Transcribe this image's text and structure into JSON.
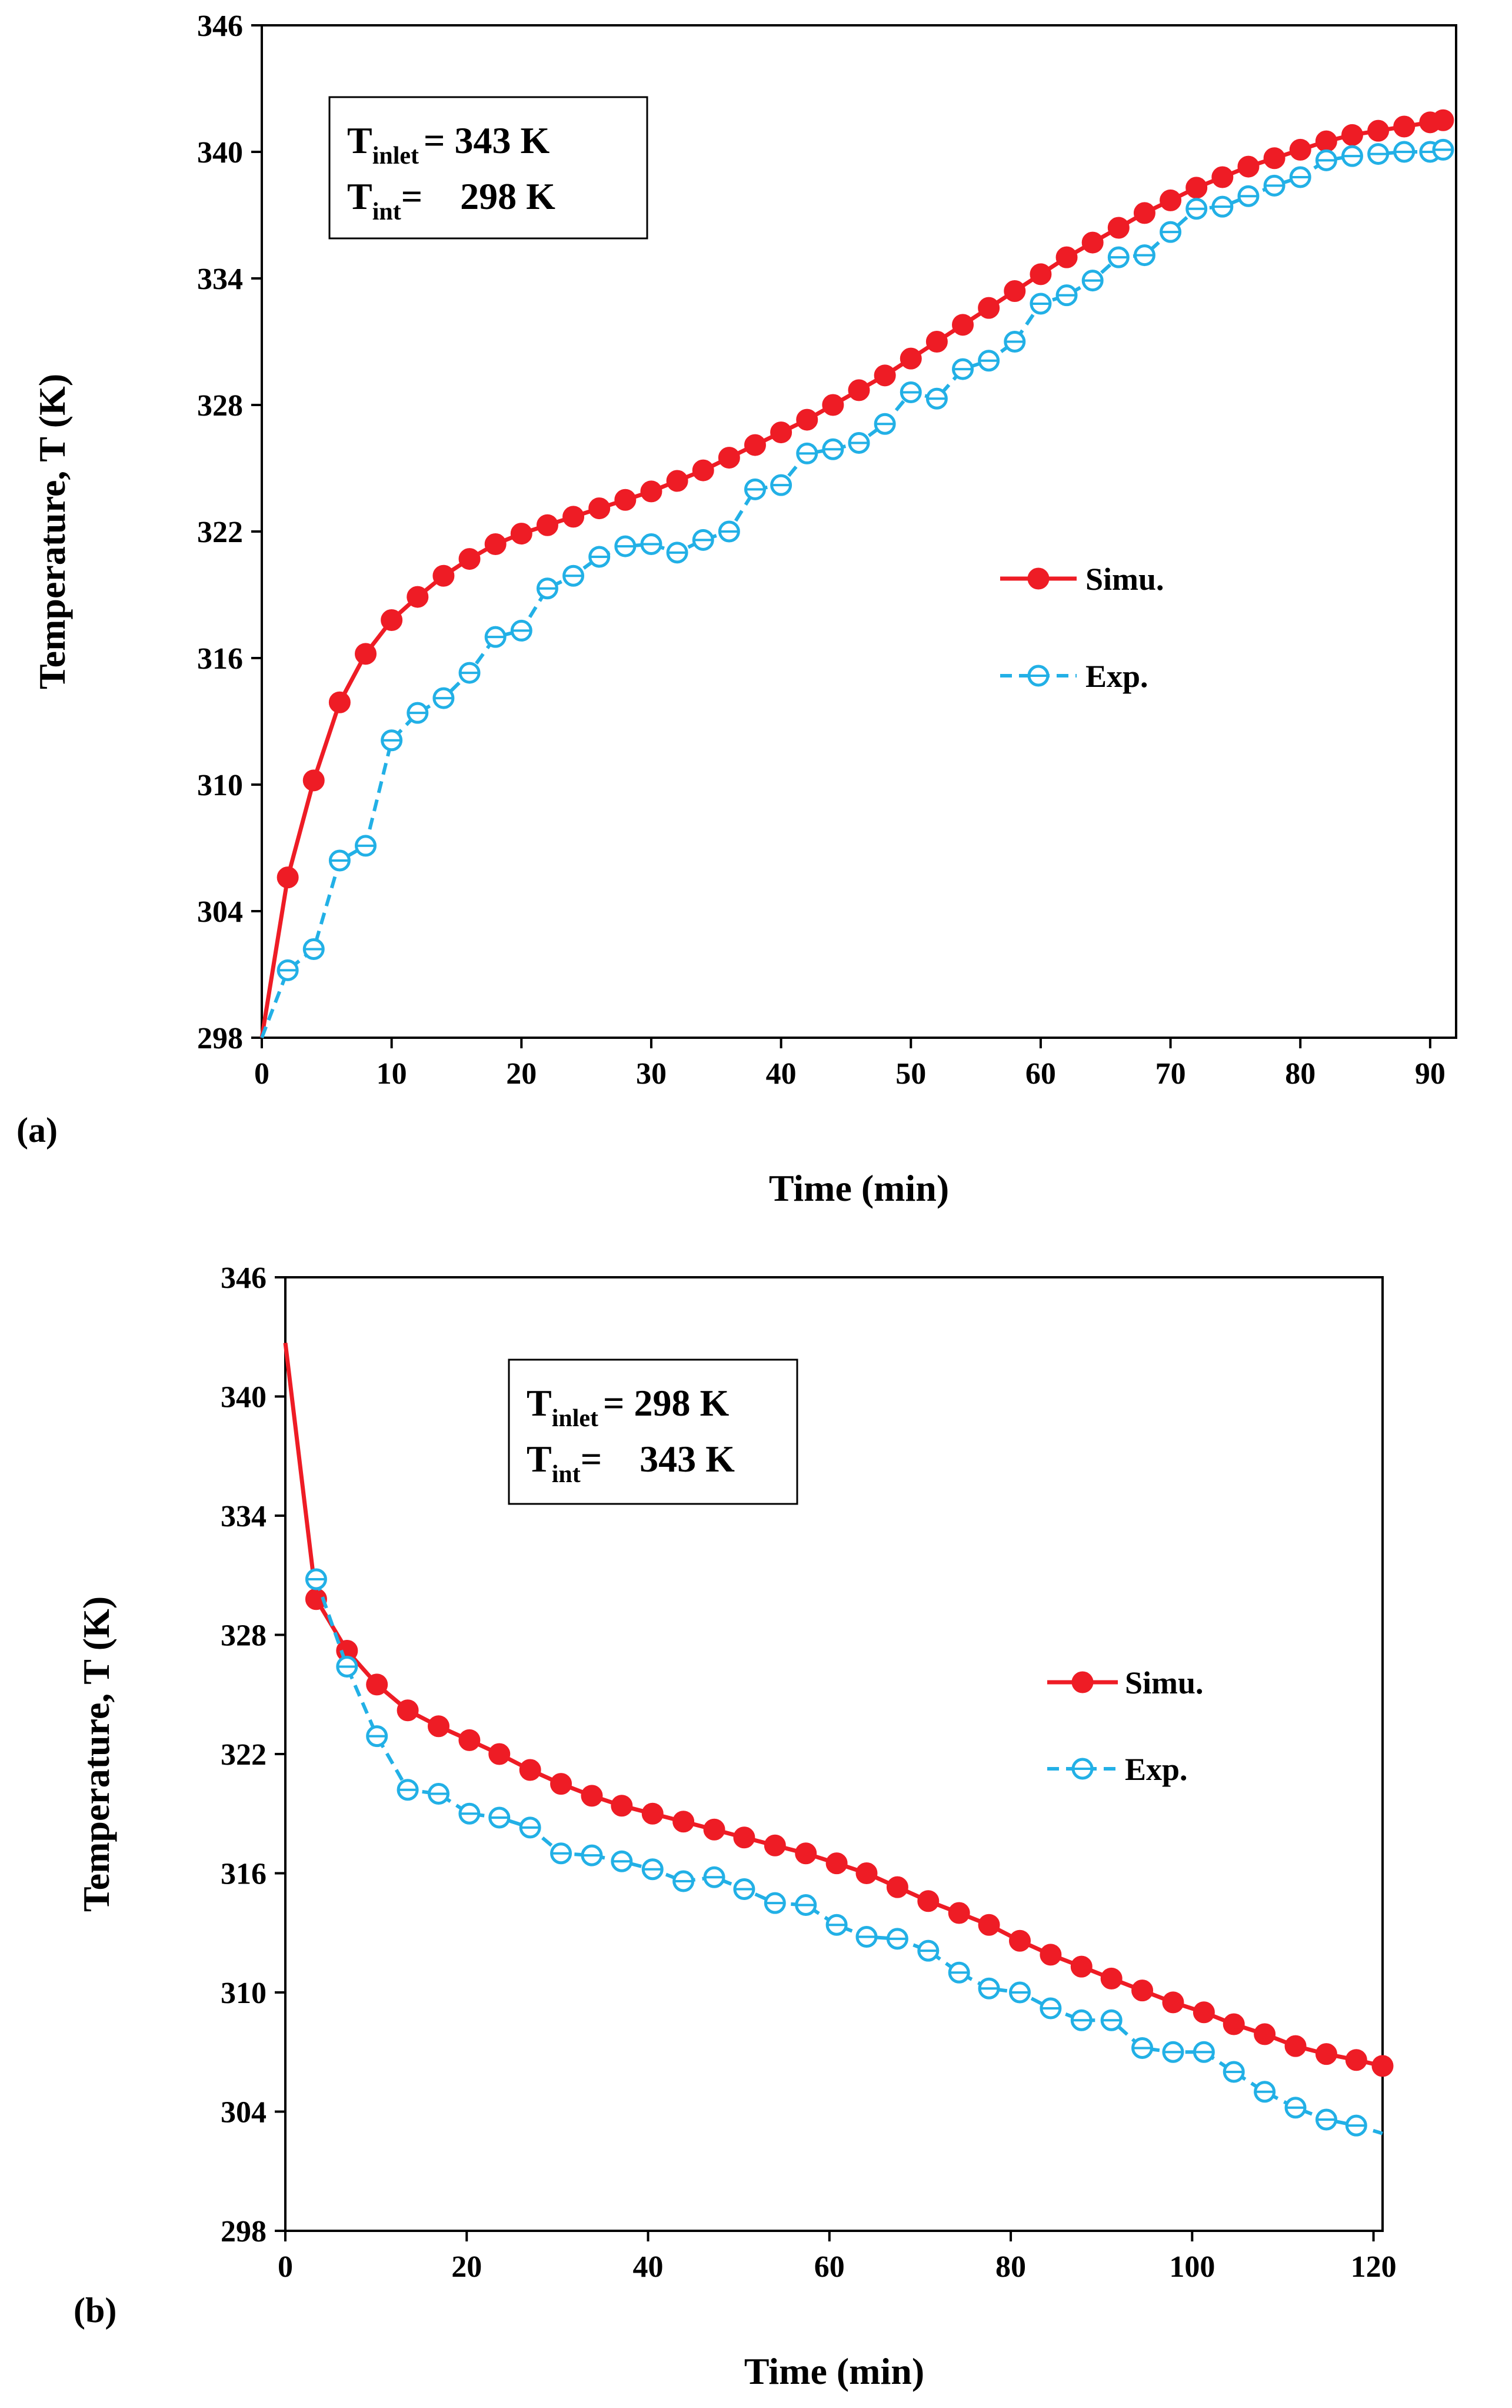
{
  "chart_data": [
    {
      "panel_label": "(a)",
      "type": "line",
      "xlabel": "Time (min)",
      "ylabel": "Temperature, T (K)",
      "xlim": [
        0,
        92
      ],
      "ylim": [
        298,
        346
      ],
      "xticks": [
        "0",
        "10",
        "20",
        "30",
        "40",
        "50",
        "60",
        "70",
        "80",
        "90"
      ],
      "yticks": [
        "298",
        "304",
        "310",
        "316",
        "322",
        "328",
        "334",
        "340",
        "346"
      ],
      "legend_position": "center-right",
      "annotation": {
        "line1_main": "T",
        "line1_sub": "inlet",
        "line1_value": "= 343 K",
        "line2_main": "T",
        "line2_sub": "int",
        "line2_value": "=    298 K"
      },
      "series": [
        {
          "name": "Simu.",
          "color": "#ee1c25",
          "style": "solid-filled-circle",
          "x": [
            0,
            2,
            4,
            6,
            8,
            10,
            12,
            14,
            16,
            18,
            20,
            22,
            24,
            26,
            28,
            30,
            32,
            34,
            36,
            38,
            40,
            42,
            44,
            46,
            48,
            50,
            52,
            54,
            56,
            58,
            60,
            62,
            64,
            66,
            68,
            70,
            72,
            74,
            76,
            78,
            80,
            82,
            84,
            86,
            88,
            90,
            91
          ],
          "y": [
            298,
            305.6,
            310.2,
            313.9,
            316.2,
            317.8,
            318.9,
            319.9,
            320.7,
            321.4,
            321.9,
            322.3,
            322.7,
            323.1,
            323.5,
            323.9,
            324.4,
            324.9,
            325.5,
            326.1,
            326.7,
            327.3,
            328.0,
            328.7,
            329.4,
            330.2,
            331.0,
            331.8,
            332.6,
            333.4,
            334.2,
            335.0,
            335.7,
            336.4,
            337.1,
            337.7,
            338.3,
            338.8,
            339.3,
            339.7,
            340.1,
            340.5,
            340.8,
            341.0,
            341.2,
            341.4,
            341.5
          ]
        },
        {
          "name": "Exp.",
          "color": "#22b0e6",
          "style": "dashed-open-circle",
          "x": [
            0,
            2,
            4,
            6,
            8,
            10,
            12,
            14,
            16,
            18,
            20,
            22,
            24,
            26,
            28,
            30,
            32,
            34,
            36,
            38,
            40,
            42,
            44,
            46,
            48,
            50,
            52,
            54,
            56,
            58,
            60,
            62,
            64,
            66,
            68,
            70,
            72,
            74,
            76,
            78,
            80,
            82,
            84,
            86,
            88,
            90,
            91
          ],
          "y": [
            298,
            301.2,
            302.2,
            306.4,
            307.1,
            312.1,
            313.4,
            314.1,
            315.3,
            317.0,
            317.3,
            319.3,
            319.9,
            320.8,
            321.3,
            321.4,
            321.0,
            321.6,
            322.0,
            324.0,
            324.2,
            325.7,
            325.9,
            326.2,
            327.1,
            328.6,
            328.3,
            329.7,
            330.1,
            331.0,
            332.8,
            333.2,
            333.9,
            335.0,
            335.1,
            336.2,
            337.3,
            337.4,
            337.9,
            338.4,
            338.8,
            339.6,
            339.8,
            339.9,
            340.0,
            340.0,
            340.1
          ]
        }
      ]
    },
    {
      "panel_label": "(b)",
      "type": "line",
      "xlabel": "Time (min)",
      "ylabel": "Temperature, T (K)",
      "xlim": [
        0,
        121
      ],
      "ylim": [
        298,
        346
      ],
      "xticks": [
        "0",
        "20",
        "40",
        "60",
        "80",
        "100",
        "120"
      ],
      "yticks": [
        "298",
        "304",
        "310",
        "316",
        "322",
        "328",
        "334",
        "340",
        "346"
      ],
      "legend_position": "center-right",
      "annotation": {
        "line1_main": "T",
        "line1_sub": "inlet",
        "line1_value": "= 298 K",
        "line2_main": "T",
        "line2_sub": "int",
        "line2_value": "=    343 K"
      },
      "series": [
        {
          "name": "Simu.",
          "color": "#ee1c25",
          "style": "solid-filled-circle",
          "x": [
            0,
            3.4,
            6.8,
            10.1,
            13.5,
            16.9,
            20.3,
            23.6,
            27,
            30.4,
            33.8,
            37.1,
            40.5,
            43.9,
            47.3,
            50.6,
            54,
            57.4,
            60.8,
            64.1,
            67.5,
            70.9,
            74.3,
            77.6,
            81,
            84.4,
            87.8,
            91.1,
            94.5,
            97.9,
            101.3,
            104.6,
            108,
            111.4,
            114.8,
            118.1,
            121
          ],
          "y": [
            342.7,
            329.8,
            327.2,
            325.5,
            324.2,
            323.4,
            322.7,
            322.0,
            321.2,
            320.5,
            319.9,
            319.4,
            319.0,
            318.6,
            318.2,
            317.8,
            317.4,
            317.0,
            316.5,
            316.0,
            315.3,
            314.6,
            314.0,
            313.4,
            312.6,
            311.9,
            311.3,
            310.7,
            310.1,
            309.5,
            309.0,
            308.4,
            307.9,
            307.3,
            306.9,
            306.6,
            306.3
          ]
        },
        {
          "name": "Exp.",
          "color": "#22b0e6",
          "style": "dashed-open-circle",
          "x": [
            3.4,
            6.8,
            10.1,
            13.5,
            16.9,
            20.3,
            23.6,
            27,
            30.4,
            33.8,
            37.1,
            40.5,
            43.9,
            47.3,
            50.6,
            54,
            57.4,
            60.8,
            64.1,
            67.5,
            70.9,
            74.3,
            77.6,
            81,
            84.4,
            87.8,
            91.1,
            94.5,
            97.9,
            101.3,
            104.6,
            108,
            111.4,
            114.8,
            118.1,
            121
          ],
          "y": [
            330.8,
            326.4,
            322.9,
            320.2,
            320.0,
            319.0,
            318.8,
            318.3,
            317.0,
            316.9,
            316.6,
            316.2,
            315.6,
            315.8,
            315.2,
            314.5,
            314.4,
            313.4,
            312.8,
            312.7,
            312.1,
            311.0,
            310.2,
            310.0,
            309.2,
            308.6,
            308.6,
            307.2,
            307.0,
            307.0,
            306.0,
            305.0,
            304.2,
            303.6,
            303.3,
            302.9
          ]
        }
      ]
    }
  ]
}
